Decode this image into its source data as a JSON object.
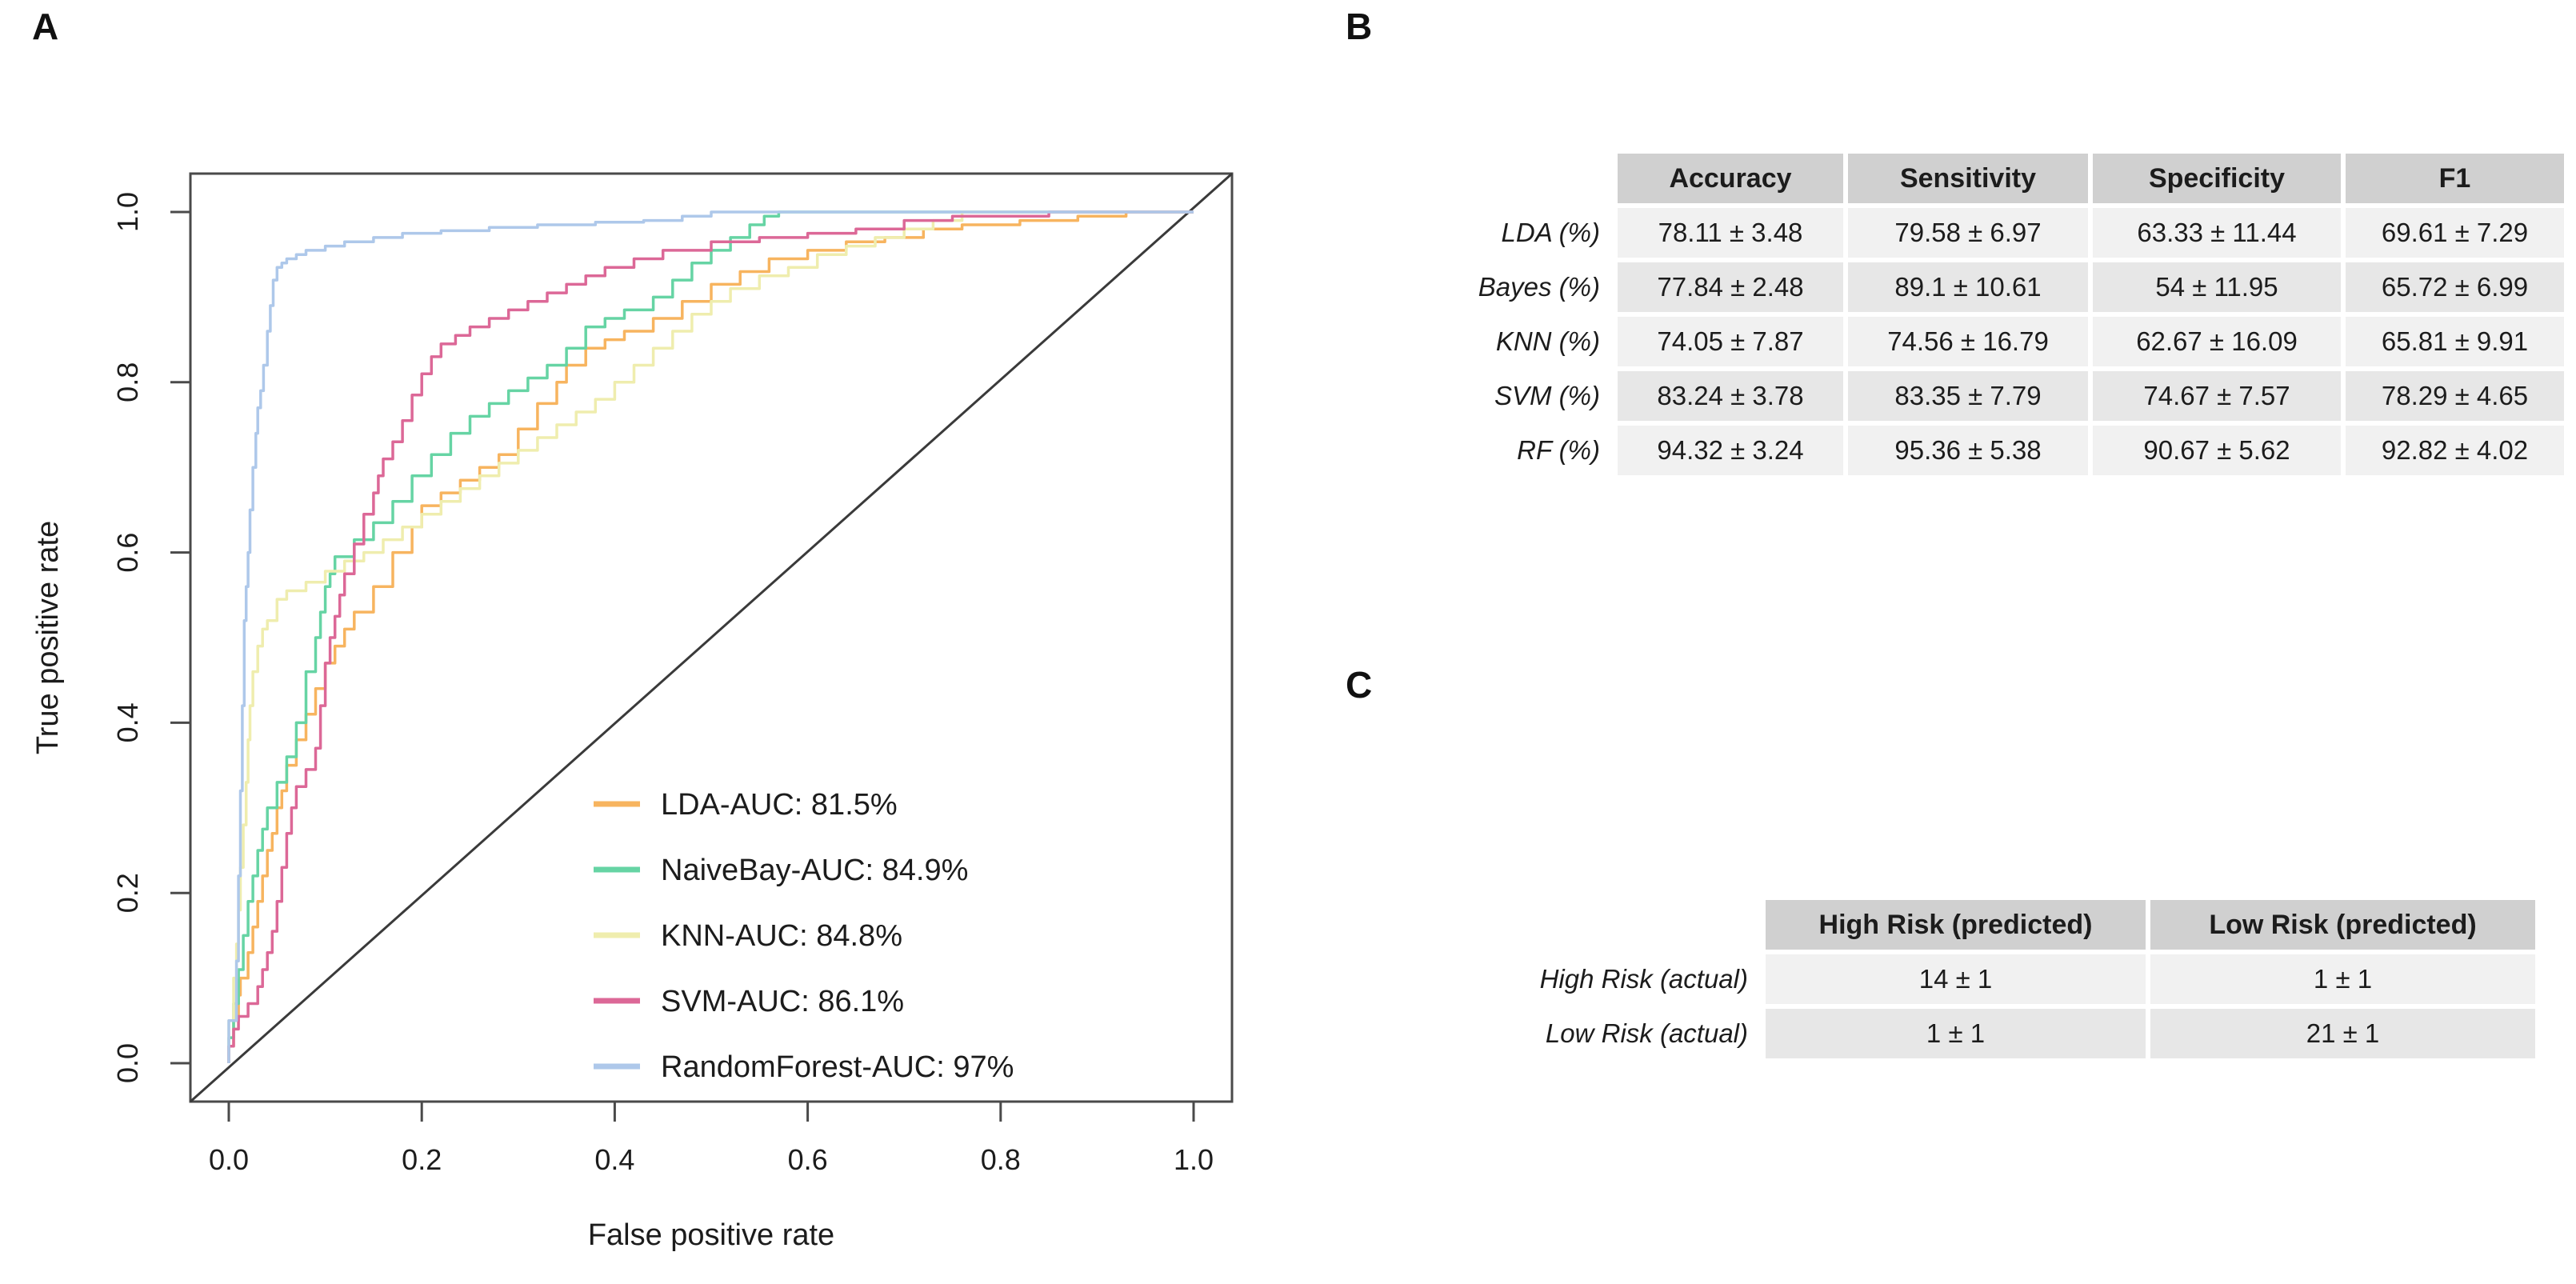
{
  "panels": {
    "a_label": "A",
    "b_label": "B",
    "c_label": "C"
  },
  "chart_data": {
    "type": "line",
    "title": "",
    "xlabel": "False positive rate",
    "ylabel": "True positive rate",
    "xlim": [
      0,
      1
    ],
    "ylim": [
      0,
      1
    ],
    "x_ticks": [
      "0.0",
      "0.2",
      "0.4",
      "0.6",
      "0.8",
      "1.0"
    ],
    "y_ticks": [
      "0.0",
      "0.2",
      "0.4",
      "0.6",
      "0.8",
      "1.0"
    ],
    "grid": "off",
    "legend_position": "inside-bottom-right",
    "diagonal_reference_line": {
      "from": [
        0,
        0
      ],
      "to": [
        1,
        1
      ]
    },
    "series": [
      {
        "name": "LDA",
        "legend_label": "LDA-AUC: 81.5%",
        "auc": "81.5%",
        "color": "#f7b45f",
        "points": [
          [
            0,
            0
          ],
          [
            0.005,
            0.02
          ],
          [
            0.01,
            0.05
          ],
          [
            0.012,
            0.08
          ],
          [
            0.02,
            0.1
          ],
          [
            0.025,
            0.13
          ],
          [
            0.03,
            0.16
          ],
          [
            0.035,
            0.19
          ],
          [
            0.04,
            0.22
          ],
          [
            0.045,
            0.25
          ],
          [
            0.05,
            0.27
          ],
          [
            0.055,
            0.3
          ],
          [
            0.06,
            0.32
          ],
          [
            0.07,
            0.35
          ],
          [
            0.08,
            0.38
          ],
          [
            0.09,
            0.41
          ],
          [
            0.1,
            0.44
          ],
          [
            0.11,
            0.47
          ],
          [
            0.12,
            0.49
          ],
          [
            0.13,
            0.51
          ],
          [
            0.15,
            0.53
          ],
          [
            0.17,
            0.56
          ],
          [
            0.19,
            0.6
          ],
          [
            0.2,
            0.63
          ],
          [
            0.22,
            0.655
          ],
          [
            0.24,
            0.67
          ],
          [
            0.26,
            0.685
          ],
          [
            0.28,
            0.7
          ],
          [
            0.3,
            0.715
          ],
          [
            0.32,
            0.745
          ],
          [
            0.34,
            0.775
          ],
          [
            0.35,
            0.8
          ],
          [
            0.37,
            0.82
          ],
          [
            0.39,
            0.84
          ],
          [
            0.41,
            0.85
          ],
          [
            0.44,
            0.86
          ],
          [
            0.47,
            0.875
          ],
          [
            0.5,
            0.895
          ],
          [
            0.53,
            0.915
          ],
          [
            0.56,
            0.93
          ],
          [
            0.6,
            0.945
          ],
          [
            0.64,
            0.955
          ],
          [
            0.68,
            0.965
          ],
          [
            0.72,
            0.97
          ],
          [
            0.76,
            0.98
          ],
          [
            0.82,
            0.985
          ],
          [
            0.88,
            0.99
          ],
          [
            0.93,
            0.995
          ],
          [
            0.96,
            1
          ],
          [
            1,
            1
          ]
        ]
      },
      {
        "name": "NaiveBay",
        "legend_label": "NaiveBay-AUC: 84.9%",
        "auc": "84.9%",
        "color": "#66d4a4",
        "points": [
          [
            0,
            0
          ],
          [
            0.005,
            0.03
          ],
          [
            0.01,
            0.07
          ],
          [
            0.015,
            0.11
          ],
          [
            0.02,
            0.15
          ],
          [
            0.025,
            0.19
          ],
          [
            0.03,
            0.22
          ],
          [
            0.035,
            0.25
          ],
          [
            0.04,
            0.275
          ],
          [
            0.05,
            0.3
          ],
          [
            0.06,
            0.33
          ],
          [
            0.07,
            0.36
          ],
          [
            0.08,
            0.4
          ],
          [
            0.09,
            0.46
          ],
          [
            0.095,
            0.5
          ],
          [
            0.1,
            0.53
          ],
          [
            0.105,
            0.56
          ],
          [
            0.11,
            0.575
          ],
          [
            0.13,
            0.595
          ],
          [
            0.15,
            0.615
          ],
          [
            0.17,
            0.635
          ],
          [
            0.19,
            0.66
          ],
          [
            0.21,
            0.69
          ],
          [
            0.23,
            0.715
          ],
          [
            0.25,
            0.74
          ],
          [
            0.27,
            0.76
          ],
          [
            0.29,
            0.775
          ],
          [
            0.31,
            0.79
          ],
          [
            0.33,
            0.805
          ],
          [
            0.35,
            0.82
          ],
          [
            0.37,
            0.84
          ],
          [
            0.39,
            0.865
          ],
          [
            0.41,
            0.875
          ],
          [
            0.44,
            0.885
          ],
          [
            0.46,
            0.9
          ],
          [
            0.48,
            0.92
          ],
          [
            0.5,
            0.94
          ],
          [
            0.52,
            0.955
          ],
          [
            0.54,
            0.97
          ],
          [
            0.555,
            0.985
          ],
          [
            0.57,
            0.995
          ],
          [
            0.6,
            1
          ],
          [
            1,
            1
          ]
        ]
      },
      {
        "name": "KNN",
        "legend_label": "KNN-AUC: 84.8%",
        "auc": "84.8%",
        "color": "#efedae",
        "points": [
          [
            0,
            0
          ],
          [
            0.005,
            0.05
          ],
          [
            0.008,
            0.1
          ],
          [
            0.01,
            0.14
          ],
          [
            0.012,
            0.18
          ],
          [
            0.015,
            0.23
          ],
          [
            0.018,
            0.28
          ],
          [
            0.02,
            0.33
          ],
          [
            0.022,
            0.38
          ],
          [
            0.025,
            0.42
          ],
          [
            0.03,
            0.46
          ],
          [
            0.035,
            0.49
          ],
          [
            0.04,
            0.51
          ],
          [
            0.05,
            0.52
          ],
          [
            0.06,
            0.545
          ],
          [
            0.08,
            0.555
          ],
          [
            0.1,
            0.565
          ],
          [
            0.12,
            0.578
          ],
          [
            0.14,
            0.59
          ],
          [
            0.16,
            0.6
          ],
          [
            0.18,
            0.615
          ],
          [
            0.2,
            0.63
          ],
          [
            0.22,
            0.645
          ],
          [
            0.24,
            0.66
          ],
          [
            0.26,
            0.675
          ],
          [
            0.28,
            0.69
          ],
          [
            0.3,
            0.705
          ],
          [
            0.32,
            0.72
          ],
          [
            0.34,
            0.735
          ],
          [
            0.36,
            0.75
          ],
          [
            0.38,
            0.765
          ],
          [
            0.4,
            0.78
          ],
          [
            0.42,
            0.8
          ],
          [
            0.44,
            0.82
          ],
          [
            0.46,
            0.84
          ],
          [
            0.48,
            0.86
          ],
          [
            0.5,
            0.88
          ],
          [
            0.52,
            0.895
          ],
          [
            0.55,
            0.91
          ],
          [
            0.58,
            0.925
          ],
          [
            0.61,
            0.935
          ],
          [
            0.64,
            0.95
          ],
          [
            0.67,
            0.96
          ],
          [
            0.7,
            0.97
          ],
          [
            0.73,
            0.98
          ],
          [
            0.76,
            0.99
          ],
          [
            0.78,
            1
          ],
          [
            1,
            1
          ]
        ]
      },
      {
        "name": "SVM",
        "legend_label": "SVM-AUC: 86.1%",
        "auc": "86.1%",
        "color": "#dc6897",
        "points": [
          [
            0,
            0
          ],
          [
            0.005,
            0.02
          ],
          [
            0.01,
            0.04
          ],
          [
            0.02,
            0.055
          ],
          [
            0.03,
            0.07
          ],
          [
            0.035,
            0.09
          ],
          [
            0.04,
            0.11
          ],
          [
            0.045,
            0.13
          ],
          [
            0.05,
            0.155
          ],
          [
            0.055,
            0.19
          ],
          [
            0.06,
            0.23
          ],
          [
            0.065,
            0.27
          ],
          [
            0.07,
            0.3
          ],
          [
            0.08,
            0.325
          ],
          [
            0.09,
            0.345
          ],
          [
            0.095,
            0.37
          ],
          [
            0.1,
            0.42
          ],
          [
            0.105,
            0.47
          ],
          [
            0.11,
            0.5
          ],
          [
            0.115,
            0.525
          ],
          [
            0.12,
            0.55
          ],
          [
            0.13,
            0.575
          ],
          [
            0.14,
            0.61
          ],
          [
            0.15,
            0.645
          ],
          [
            0.155,
            0.67
          ],
          [
            0.16,
            0.69
          ],
          [
            0.17,
            0.71
          ],
          [
            0.18,
            0.73
          ],
          [
            0.19,
            0.755
          ],
          [
            0.2,
            0.785
          ],
          [
            0.21,
            0.81
          ],
          [
            0.22,
            0.83
          ],
          [
            0.235,
            0.845
          ],
          [
            0.25,
            0.855
          ],
          [
            0.27,
            0.865
          ],
          [
            0.29,
            0.875
          ],
          [
            0.31,
            0.885
          ],
          [
            0.33,
            0.895
          ],
          [
            0.35,
            0.905
          ],
          [
            0.37,
            0.915
          ],
          [
            0.39,
            0.925
          ],
          [
            0.42,
            0.935
          ],
          [
            0.45,
            0.945
          ],
          [
            0.5,
            0.955
          ],
          [
            0.55,
            0.965
          ],
          [
            0.6,
            0.97
          ],
          [
            0.65,
            0.975
          ],
          [
            0.7,
            0.98
          ],
          [
            0.75,
            0.99
          ],
          [
            0.85,
            0.995
          ],
          [
            0.93,
            1
          ],
          [
            1,
            1
          ]
        ]
      },
      {
        "name": "RandomForest",
        "legend_label": "RandomForest-AUC: 97%",
        "auc": "97%",
        "color": "#aec8ea",
        "points": [
          [
            0,
            0
          ],
          [
            0.008,
            0.05
          ],
          [
            0.01,
            0.12
          ],
          [
            0.012,
            0.22
          ],
          [
            0.014,
            0.32
          ],
          [
            0.016,
            0.42
          ],
          [
            0.018,
            0.52
          ],
          [
            0.02,
            0.56
          ],
          [
            0.022,
            0.6
          ],
          [
            0.025,
            0.65
          ],
          [
            0.028,
            0.7
          ],
          [
            0.03,
            0.74
          ],
          [
            0.033,
            0.77
          ],
          [
            0.036,
            0.79
          ],
          [
            0.04,
            0.82
          ],
          [
            0.043,
            0.86
          ],
          [
            0.046,
            0.89
          ],
          [
            0.05,
            0.92
          ],
          [
            0.055,
            0.935
          ],
          [
            0.06,
            0.94
          ],
          [
            0.07,
            0.945
          ],
          [
            0.08,
            0.95
          ],
          [
            0.1,
            0.955
          ],
          [
            0.12,
            0.96
          ],
          [
            0.15,
            0.965
          ],
          [
            0.18,
            0.97
          ],
          [
            0.22,
            0.975
          ],
          [
            0.27,
            0.978
          ],
          [
            0.32,
            0.982
          ],
          [
            0.38,
            0.985
          ],
          [
            0.43,
            0.988
          ],
          [
            0.47,
            0.99
          ],
          [
            0.5,
            0.995
          ],
          [
            0.53,
            1
          ],
          [
            1,
            1
          ]
        ]
      }
    ]
  },
  "metrics_table": {
    "columns": [
      "Accuracy",
      "Sensitivity",
      "Specificity",
      "F1"
    ],
    "rows": [
      {
        "label": "LDA (%)",
        "values": [
          "78.11 ± 3.48",
          "79.58 ± 6.97",
          "63.33 ± 11.44",
          "69.61 ± 7.29"
        ]
      },
      {
        "label": "Bayes (%)",
        "values": [
          "77.84 ± 2.48",
          "89.1 ± 10.61",
          "54 ± 11.95",
          "65.72 ± 6.99"
        ]
      },
      {
        "label": "KNN (%)",
        "values": [
          "74.05 ± 7.87",
          "74.56 ± 16.79",
          "62.67 ± 16.09",
          "65.81 ± 9.91"
        ]
      },
      {
        "label": "SVM (%)",
        "values": [
          "83.24 ± 3.78",
          "83.35 ± 7.79",
          "74.67 ± 7.57",
          "78.29 ± 4.65"
        ]
      },
      {
        "label": "RF (%)",
        "values": [
          "94.32 ± 3.24",
          "95.36 ± 5.38",
          "90.67 ± 5.62",
          "92.82 ± 4.02"
        ]
      }
    ]
  },
  "confusion_table": {
    "columns": [
      "High Risk (predicted)",
      "Low Risk (predicted)"
    ],
    "rows": [
      {
        "label": "High Risk (actual)",
        "values": [
          "14 ± 1",
          "1 ± 1"
        ]
      },
      {
        "label": "Low Risk (actual)",
        "values": [
          "1 ± 1",
          "21 ± 1"
        ]
      }
    ]
  },
  "colors": {
    "background": "#ffffff",
    "axis": "#4a4a4a",
    "diagonal": "#3a3a3a",
    "text": "#1c1c1c",
    "table_header_bg": "#d0d0d0",
    "table_row_odd_bg": "#f1f1f1",
    "table_row_even_bg": "#e7e7e7"
  }
}
